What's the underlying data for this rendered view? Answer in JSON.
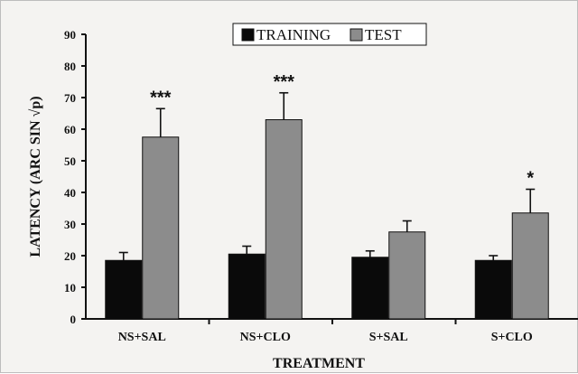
{
  "chart_data": {
    "type": "bar",
    "title": "",
    "xlabel": "TREATMENT",
    "ylabel": "LATENCY (ARC SIN √p)",
    "ylim": [
      0,
      90
    ],
    "yticks": [
      0,
      10,
      20,
      30,
      40,
      50,
      60,
      70,
      80,
      90
    ],
    "categories": [
      "NS+SAL",
      "NS+CLO",
      "S+SAL",
      "S+CLO"
    ],
    "series": [
      {
        "name": "TRAINING",
        "color": "#0a0a0a",
        "values": [
          18.5,
          20.5,
          19.5,
          18.5
        ],
        "errors": [
          2.5,
          2.5,
          2.0,
          1.5
        ]
      },
      {
        "name": "TEST",
        "color": "#8c8c8c",
        "values": [
          57.5,
          63,
          27.5,
          33.5
        ],
        "errors": [
          9,
          8.5,
          3.5,
          7.5
        ]
      }
    ],
    "annotations": [
      "***",
      "***",
      "",
      "*"
    ],
    "legend_position": "top-center",
    "grid": false
  }
}
